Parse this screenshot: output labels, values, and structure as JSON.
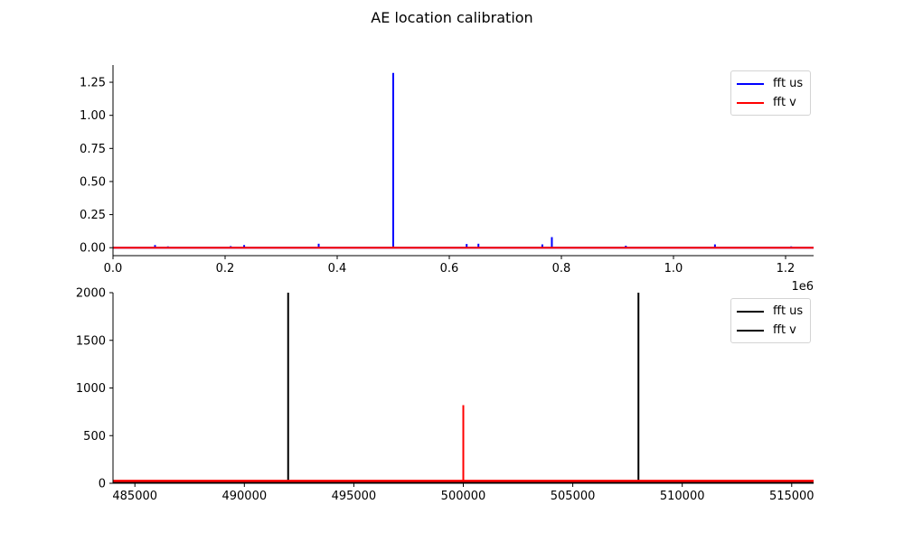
{
  "figure": {
    "title": "AE location calibration"
  },
  "chart_data": [
    {
      "type": "line",
      "xlabel": "",
      "ylabel": "",
      "x_offset_label": "1e6",
      "xlim": [
        0,
        1250000
      ],
      "ylim": [
        -0.06,
        1.38
      ],
      "xticks": [
        0,
        200000,
        400000,
        600000,
        800000,
        1000000,
        1200000
      ],
      "xtick_labels": [
        "0.0",
        "0.2",
        "0.4",
        "0.6",
        "0.8",
        "1.0",
        "1.2"
      ],
      "yticks": [
        0.0,
        0.25,
        0.5,
        0.75,
        1.0,
        1.25
      ],
      "ytick_labels": [
        "0.00",
        "0.25",
        "0.50",
        "0.75",
        "1.00",
        "1.25"
      ],
      "legend_position": "top-right",
      "series": [
        {
          "name": "fft us",
          "color": "#0000ff",
          "baseline": 0.0,
          "peaks": [
            [
              75000,
              0.02
            ],
            [
              98000,
              0.01
            ],
            [
              210000,
              0.012
            ],
            [
              234000,
              0.02
            ],
            [
              367000,
              0.03
            ],
            [
              500000,
              1.32
            ],
            [
              631000,
              0.028
            ],
            [
              652000,
              0.03
            ],
            [
              766000,
              0.025
            ],
            [
              783000,
              0.08
            ],
            [
              915000,
              0.015
            ],
            [
              1074000,
              0.025
            ],
            [
              1210000,
              0.01
            ]
          ]
        },
        {
          "name": "fft v",
          "color": "#ff0000",
          "baseline": 0.0,
          "peaks": [
            [
              500000,
              0.01
            ]
          ]
        }
      ]
    },
    {
      "type": "line",
      "xlabel": "",
      "ylabel": "",
      "xlim": [
        484000,
        516000
      ],
      "ylim": [
        0,
        2000
      ],
      "xticks": [
        485000,
        490000,
        495000,
        500000,
        505000,
        510000,
        515000
      ],
      "xtick_labels": [
        "485000",
        "490000",
        "495000",
        "500000",
        "505000",
        "510000",
        "515000"
      ],
      "yticks": [
        0,
        500,
        1000,
        1500,
        2000
      ],
      "ytick_labels": [
        "0",
        "500",
        "1000",
        "1500",
        "2000"
      ],
      "legend_position": "top-right",
      "series": [
        {
          "name": "fft us",
          "color": "#000000",
          "baseline": 8,
          "peaks": [
            [
              492000,
              2000
            ],
            [
              508000,
              2000
            ]
          ]
        },
        {
          "name": "fft v",
          "color": "#000000",
          "line_color": "#ff0000",
          "baseline": 25,
          "peaks": [
            [
              500000,
              820
            ]
          ]
        }
      ]
    }
  ]
}
